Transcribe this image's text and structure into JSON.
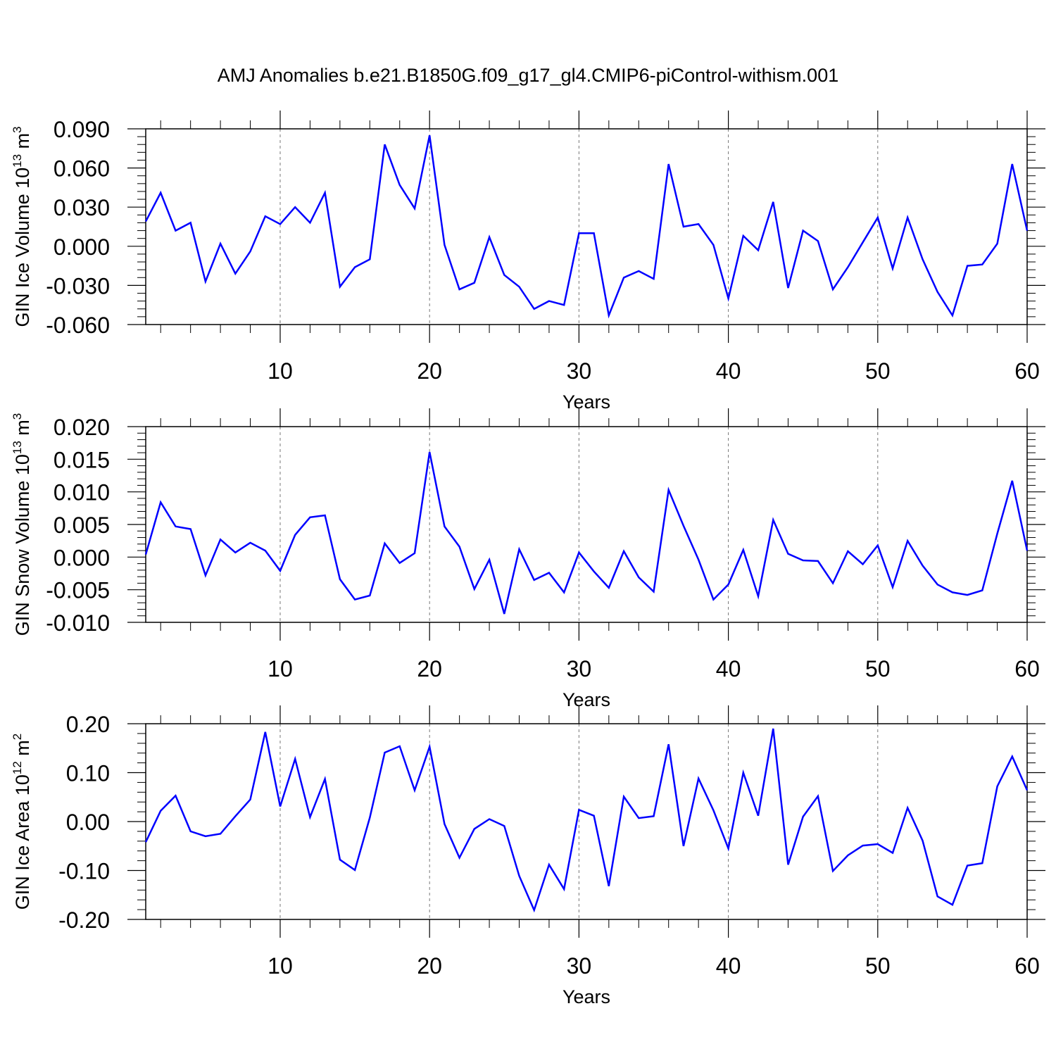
{
  "figure": {
    "title": "AMJ Anomalies b.e21.B1850G.f09_g17_gl4.CMIP6-piControl-withism.001"
  },
  "chart_data": [
    {
      "type": "line",
      "ylabel": "GIN Ice Volume 10",
      "ylabel_exp": "13",
      "ylabel_unit": " m",
      "ylabel_unit_exp": "3",
      "xlabel": "Years",
      "xlim": [
        1,
        60
      ],
      "ylim": [
        -0.06,
        0.09
      ],
      "yticks": [
        -0.06,
        -0.03,
        0.0,
        0.03,
        0.06,
        0.09
      ],
      "ytick_labels": [
        "-0.060",
        "-0.030",
        "0.000",
        "0.030",
        "0.060",
        "0.090"
      ],
      "xticks": [
        10,
        20,
        30,
        40,
        50,
        60
      ],
      "xtick_labels": [
        "10",
        "20",
        "30",
        "40",
        "50",
        "60"
      ],
      "grid_x": [
        10,
        20,
        30,
        40,
        50
      ],
      "series": [
        {
          "name": "GIN Ice Volume",
          "color": "#0000ff",
          "x": [
            1,
            2,
            3,
            4,
            5,
            6,
            7,
            8,
            9,
            10,
            11,
            12,
            13,
            14,
            15,
            16,
            17,
            18,
            19,
            20,
            21,
            22,
            23,
            24,
            25,
            26,
            27,
            28,
            29,
            30,
            31,
            32,
            33,
            34,
            35,
            36,
            37,
            38,
            39,
            40,
            41,
            42,
            43,
            44,
            45,
            46,
            47,
            48,
            49,
            50,
            51,
            52,
            53,
            54,
            55,
            56,
            57,
            58,
            59,
            60
          ],
          "values": [
            0.019,
            0.041,
            0.012,
            0.018,
            -0.027,
            0.002,
            -0.021,
            -0.004,
            0.023,
            0.017,
            0.03,
            0.018,
            0.041,
            -0.031,
            -0.016,
            -0.01,
            0.078,
            0.047,
            0.029,
            0.085,
            0.001,
            -0.033,
            -0.028,
            0.007,
            -0.022,
            -0.031,
            -0.048,
            -0.042,
            -0.045,
            0.01,
            0.01,
            -0.053,
            -0.024,
            -0.019,
            -0.025,
            0.063,
            0.015,
            0.017,
            0.001,
            -0.04,
            0.008,
            -0.003,
            0.034,
            -0.032,
            0.012,
            0.004,
            -0.033,
            -0.016,
            0.003,
            0.022,
            -0.017,
            0.022,
            -0.01,
            -0.035,
            -0.053,
            -0.015,
            -0.014,
            0.002,
            0.063,
            0.012
          ]
        }
      ]
    },
    {
      "type": "line",
      "ylabel": "GIN Snow Volume 10",
      "ylabel_exp": "13",
      "ylabel_unit": " m",
      "ylabel_unit_exp": "3",
      "xlabel": "Years",
      "xlim": [
        1,
        60
      ],
      "ylim": [
        -0.01,
        0.02
      ],
      "yticks": [
        -0.01,
        -0.005,
        0.0,
        0.005,
        0.01,
        0.015,
        0.02
      ],
      "ytick_labels": [
        "-0.010",
        "-0.005",
        "0.000",
        "0.005",
        "0.010",
        "0.015",
        "0.020"
      ],
      "xticks": [
        10,
        20,
        30,
        40,
        50,
        60
      ],
      "xtick_labels": [
        "10",
        "20",
        "30",
        "40",
        "50",
        "60"
      ],
      "grid_x": [
        10,
        20,
        30,
        40,
        50
      ],
      "series": [
        {
          "name": "GIN Snow Volume",
          "color": "#0000ff",
          "x": [
            1,
            2,
            3,
            4,
            5,
            6,
            7,
            8,
            9,
            10,
            11,
            12,
            13,
            14,
            15,
            16,
            17,
            18,
            19,
            20,
            21,
            22,
            23,
            24,
            25,
            26,
            27,
            28,
            29,
            30,
            31,
            32,
            33,
            34,
            35,
            36,
            37,
            38,
            39,
            40,
            41,
            42,
            43,
            44,
            45,
            46,
            47,
            48,
            49,
            50,
            51,
            52,
            53,
            54,
            55,
            56,
            57,
            58,
            59,
            60
          ],
          "values": [
            0.0004,
            0.0084,
            0.0047,
            0.0043,
            -0.0028,
            0.0027,
            0.0007,
            0.0022,
            0.001,
            -0.0021,
            0.0034,
            0.0061,
            0.0064,
            -0.0034,
            -0.0065,
            -0.0059,
            0.0021,
            -0.0009,
            0.0006,
            0.0161,
            0.0047,
            0.0016,
            -0.0049,
            -0.0004,
            -0.0087,
            0.0012,
            -0.0035,
            -0.0024,
            -0.0054,
            0.0007,
            -0.0022,
            -0.0047,
            0.0009,
            -0.0031,
            -0.0053,
            0.0103,
            0.0048,
            -0.0004,
            -0.0065,
            -0.0042,
            0.0011,
            -0.006,
            0.0057,
            0.0005,
            -0.0005,
            -0.0006,
            -0.004,
            0.0009,
            -0.0011,
            0.0018,
            -0.0046,
            0.0025,
            -0.0013,
            -0.0042,
            -0.0054,
            -0.0058,
            -0.0051,
            0.0036,
            0.0117,
            0.001
          ]
        }
      ]
    },
    {
      "type": "line",
      "ylabel": "GIN Ice Area 10",
      "ylabel_exp": "12",
      "ylabel_unit": " m",
      "ylabel_unit_exp": "2",
      "xlabel": "Years",
      "xlim": [
        1,
        60
      ],
      "ylim": [
        -0.2,
        0.2
      ],
      "yticks": [
        -0.2,
        -0.1,
        0.0,
        0.1,
        0.2
      ],
      "ytick_labels": [
        "-0.20",
        "-0.10",
        "0.00",
        "0.10",
        "0.20"
      ],
      "xticks": [
        10,
        20,
        30,
        40,
        50,
        60
      ],
      "xtick_labels": [
        "10",
        "20",
        "30",
        "40",
        "50",
        "60"
      ],
      "grid_x": [
        10,
        20,
        30,
        40,
        50
      ],
      "series": [
        {
          "name": "GIN Ice Area",
          "color": "#0000ff",
          "x": [
            1,
            2,
            3,
            4,
            5,
            6,
            7,
            8,
            9,
            10,
            11,
            12,
            13,
            14,
            15,
            16,
            17,
            18,
            19,
            20,
            21,
            22,
            23,
            24,
            25,
            26,
            27,
            28,
            29,
            30,
            31,
            32,
            33,
            34,
            35,
            36,
            37,
            38,
            39,
            40,
            41,
            42,
            43,
            44,
            45,
            46,
            47,
            48,
            49,
            50,
            51,
            52,
            53,
            54,
            55,
            56,
            57,
            58,
            59,
            60
          ],
          "values": [
            -0.042,
            0.022,
            0.053,
            -0.02,
            -0.03,
            -0.025,
            0.011,
            0.045,
            0.183,
            0.031,
            0.128,
            0.009,
            0.087,
            -0.078,
            -0.099,
            0.008,
            0.141,
            0.154,
            0.064,
            0.153,
            -0.005,
            -0.074,
            -0.015,
            0.005,
            -0.009,
            -0.111,
            -0.181,
            -0.088,
            -0.138,
            0.024,
            0.012,
            -0.132,
            0.051,
            0.007,
            0.011,
            0.158,
            -0.05,
            0.088,
            0.023,
            -0.055,
            0.1,
            0.012,
            0.19,
            -0.088,
            0.01,
            0.052,
            -0.101,
            -0.069,
            -0.049,
            -0.046,
            -0.064,
            0.028,
            -0.039,
            -0.153,
            -0.17,
            -0.09,
            -0.085,
            0.072,
            0.133,
            0.064
          ]
        }
      ]
    }
  ]
}
